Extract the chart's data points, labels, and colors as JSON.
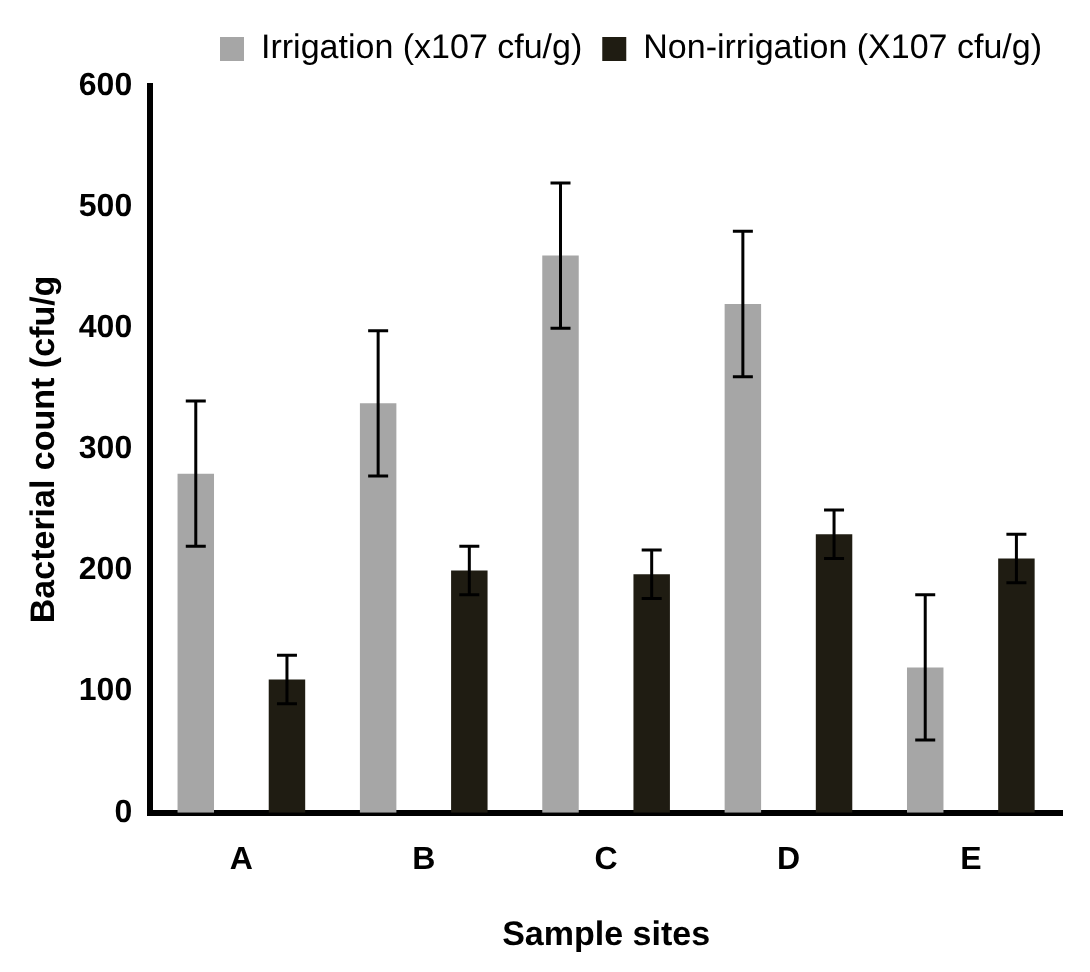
{
  "chart_data": {
    "type": "bar",
    "xlabel": "Sample sites",
    "ylabel": "Bacterial count (cfu/g",
    "categories": [
      "A",
      "B",
      "C",
      "D",
      "E"
    ],
    "series": [
      {
        "name": "Irrigation (x107 cfu/g)",
        "color": "#a6a6a6",
        "values": [
          280,
          338,
          460,
          420,
          120
        ],
        "errors": [
          60,
          60,
          60,
          60,
          60
        ]
      },
      {
        "name": "Non-irrigation (X107 cfu/g)",
        "color": "#1f1c12",
        "values": [
          110,
          200,
          197,
          230,
          210
        ],
        "errors": [
          20,
          20,
          20,
          20,
          20
        ]
      }
    ],
    "ylim": [
      0,
      600
    ],
    "yticks": [
      0,
      100,
      200,
      300,
      400,
      500,
      600
    ],
    "grid": false,
    "legend": "top right"
  }
}
